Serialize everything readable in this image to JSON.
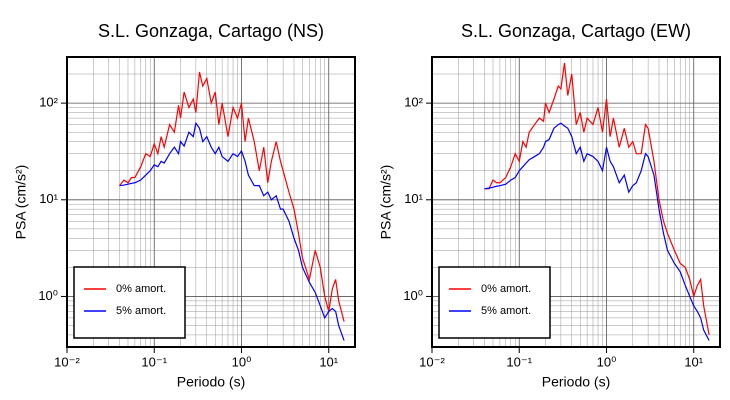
{
  "chart_data": [
    {
      "type": "line",
      "title": "S.L. Gonzaga, Cartago (NS)",
      "xlabel": "Periodo (s)",
      "ylabel": "PSA (cm/s²)",
      "xscale": "log",
      "yscale": "log",
      "grid": true,
      "legend": "lower left",
      "xlim": [
        0.01,
        20
      ],
      "ylim": [
        0.3,
        300
      ],
      "xticks": [
        {
          "value": 0.01,
          "label": "10⁻²"
        },
        {
          "value": 0.1,
          "label": "10⁻¹"
        },
        {
          "value": 1,
          "label": "10⁰"
        },
        {
          "value": 10,
          "label": "10¹"
        }
      ],
      "yticks": [
        {
          "value": 1,
          "label": "10⁰"
        },
        {
          "value": 10,
          "label": "10¹"
        },
        {
          "value": 100,
          "label": "10²"
        }
      ],
      "xminorticks": [
        0.02,
        0.03,
        0.04,
        0.05,
        0.06,
        0.07,
        0.08,
        0.09,
        0.2,
        0.3,
        0.4,
        0.5,
        0.6,
        0.7,
        0.8,
        0.9,
        2,
        3,
        4,
        5,
        6,
        7,
        8,
        9
      ],
      "yminorticks": [
        0.4,
        0.5,
        0.6,
        0.7,
        0.8,
        0.9,
        2,
        3,
        4,
        5,
        6,
        7,
        8,
        9,
        20,
        30,
        40,
        50,
        60,
        70,
        80,
        90,
        200
      ],
      "x": [
        0.04,
        0.045,
        0.05,
        0.055,
        0.06,
        0.07,
        0.08,
        0.09,
        0.1,
        0.11,
        0.12,
        0.13,
        0.15,
        0.17,
        0.19,
        0.2,
        0.22,
        0.25,
        0.28,
        0.3,
        0.33,
        0.36,
        0.4,
        0.45,
        0.5,
        0.55,
        0.6,
        0.7,
        0.8,
        0.9,
        1.0,
        1.1,
        1.2,
        1.4,
        1.6,
        1.8,
        2.0,
        2.2,
        2.5,
        2.8,
        3.0,
        3.5,
        4,
        4.5,
        5,
        6,
        7,
        8,
        9,
        10,
        11,
        12,
        13,
        15
      ],
      "series": [
        {
          "name": "0% amort.",
          "color": "#ff0000",
          "values": [
            14,
            16,
            15,
            17,
            17,
            22,
            30,
            28,
            38,
            30,
            45,
            35,
            60,
            50,
            95,
            70,
            130,
            90,
            110,
            80,
            210,
            150,
            180,
            100,
            130,
            60,
            100,
            45,
            90,
            70,
            100,
            40,
            70,
            40,
            20,
            35,
            15,
            25,
            40,
            25,
            20,
            12,
            8,
            4.5,
            2.5,
            1.5,
            3,
            2,
            1.0,
            0.7,
            1.2,
            1.5,
            0.9,
            0.55
          ]
        },
        {
          "name": "5% amort.",
          "color": "#0000ff",
          "values": [
            14,
            14.2,
            14.5,
            14.8,
            15,
            16,
            18,
            20,
            23,
            22,
            25,
            24,
            30,
            35,
            30,
            40,
            36,
            50,
            45,
            62,
            55,
            40,
            45,
            35,
            30,
            35,
            28,
            25,
            30,
            28,
            32,
            25,
            18,
            14,
            14,
            11,
            12,
            10,
            11,
            8,
            8,
            6,
            4,
            3,
            2,
            1.4,
            1.1,
            0.8,
            0.6,
            0.7,
            0.75,
            0.7,
            0.5,
            0.35
          ]
        }
      ]
    },
    {
      "type": "line",
      "title": "S.L. Gonzaga, Cartago (EW)",
      "xlabel": "Periodo (s)",
      "ylabel": "PSA (cm/s²)",
      "xscale": "log",
      "yscale": "log",
      "grid": true,
      "legend": "lower left",
      "xlim": [
        0.01,
        20
      ],
      "ylim": [
        0.3,
        300
      ],
      "xticks": [
        {
          "value": 0.01,
          "label": "10⁻²"
        },
        {
          "value": 0.1,
          "label": "10⁻¹"
        },
        {
          "value": 1,
          "label": "10⁰"
        },
        {
          "value": 10,
          "label": "10¹"
        }
      ],
      "yticks": [
        {
          "value": 1,
          "label": "10⁰"
        },
        {
          "value": 10,
          "label": "10¹"
        },
        {
          "value": 100,
          "label": "10²"
        }
      ],
      "xminorticks": [
        0.02,
        0.03,
        0.04,
        0.05,
        0.06,
        0.07,
        0.08,
        0.09,
        0.2,
        0.3,
        0.4,
        0.5,
        0.6,
        0.7,
        0.8,
        0.9,
        2,
        3,
        4,
        5,
        6,
        7,
        8,
        9
      ],
      "yminorticks": [
        0.4,
        0.5,
        0.6,
        0.7,
        0.8,
        0.9,
        2,
        3,
        4,
        5,
        6,
        7,
        8,
        9,
        20,
        30,
        40,
        50,
        60,
        70,
        80,
        90,
        200
      ],
      "x": [
        0.04,
        0.045,
        0.05,
        0.055,
        0.06,
        0.07,
        0.08,
        0.09,
        0.1,
        0.11,
        0.12,
        0.13,
        0.15,
        0.17,
        0.19,
        0.2,
        0.22,
        0.25,
        0.28,
        0.3,
        0.33,
        0.36,
        0.4,
        0.45,
        0.5,
        0.55,
        0.6,
        0.7,
        0.8,
        0.9,
        1.0,
        1.1,
        1.2,
        1.4,
        1.6,
        1.8,
        2.0,
        2.2,
        2.5,
        2.8,
        3.0,
        3.5,
        4,
        4.5,
        5,
        6,
        7,
        8,
        9,
        10,
        11,
        12,
        13,
        15
      ],
      "series": [
        {
          "name": "0% amort.",
          "color": "#ff0000",
          "values": [
            13,
            13,
            16,
            15,
            15,
            17,
            22,
            30,
            25,
            40,
            35,
            50,
            60,
            70,
            65,
            100,
            80,
            110,
            150,
            140,
            260,
            120,
            200,
            60,
            80,
            50,
            70,
            60,
            90,
            50,
            110,
            45,
            70,
            35,
            55,
            35,
            40,
            30,
            30,
            60,
            55,
            25,
            10,
            6,
            4.5,
            3,
            2.2,
            2.0,
            1.5,
            1.0,
            1.3,
            1.5,
            0.8,
            0.4
          ]
        },
        {
          "name": "5% amort.",
          "color": "#0000ff",
          "values": [
            13,
            13.2,
            13.5,
            13.8,
            14,
            14.5,
            16,
            17,
            20,
            22,
            24,
            26,
            28,
            30,
            35,
            40,
            42,
            55,
            60,
            62,
            58,
            55,
            45,
            30,
            35,
            25,
            30,
            28,
            25,
            20,
            35,
            25,
            22,
            15,
            18,
            12,
            14,
            15,
            20,
            30,
            28,
            18,
            8,
            4.5,
            3,
            2.2,
            1.8,
            1.3,
            1.0,
            0.8,
            0.7,
            0.6,
            0.45,
            0.35
          ]
        }
      ]
    }
  ]
}
